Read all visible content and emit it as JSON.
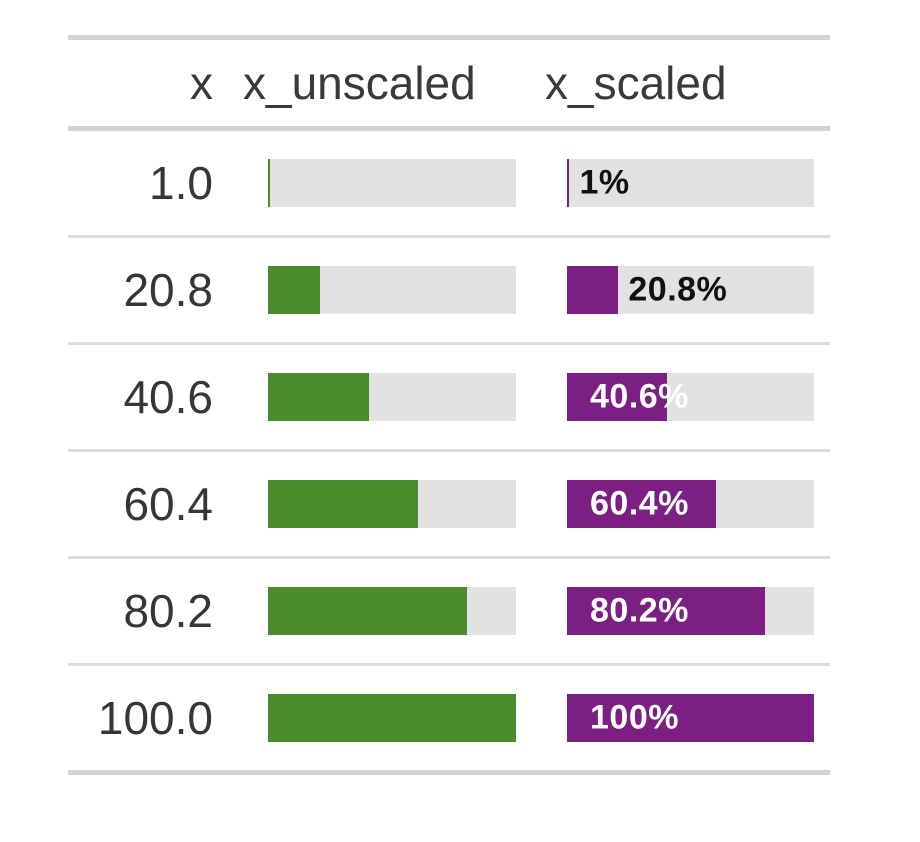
{
  "table": {
    "columns": [
      {
        "id": "x",
        "label": "x"
      },
      {
        "id": "x_unscaled",
        "label": "x_unscaled"
      },
      {
        "id": "x_scaled",
        "label": "x_scaled"
      }
    ],
    "rows": [
      {
        "x": "1.0",
        "pct": 1,
        "bar_label": "1%",
        "label_inside": false
      },
      {
        "x": "20.8",
        "pct": 20.8,
        "bar_label": "20.8%",
        "label_inside": false
      },
      {
        "x": "40.6",
        "pct": 40.6,
        "bar_label": "40.6%",
        "label_inside": true
      },
      {
        "x": "60.4",
        "pct": 60.4,
        "bar_label": "60.4%",
        "label_inside": true
      },
      {
        "x": "80.2",
        "pct": 80.2,
        "bar_label": "80.2%",
        "label_inside": true
      },
      {
        "x": "100.0",
        "pct": 100,
        "bar_label": "100%",
        "label_inside": true
      }
    ]
  },
  "chart_data": {
    "type": "table",
    "columns": [
      "x",
      "x_unscaled",
      "x_scaled"
    ],
    "x": [
      1.0,
      20.8,
      40.6,
      60.4,
      80.2,
      100.0
    ],
    "series": [
      {
        "name": "x_unscaled",
        "type": "bar",
        "values": [
          1,
          20.8,
          40.6,
          60.4,
          80.2,
          100
        ],
        "color": "#4A8B2C",
        "labels": []
      },
      {
        "name": "x_scaled",
        "type": "bar",
        "values": [
          1,
          20.8,
          40.6,
          60.4,
          80.2,
          100
        ],
        "color": "#7B2082",
        "labels": [
          "1%",
          "20.8%",
          "40.6%",
          "60.4%",
          "80.2%",
          "100%"
        ]
      }
    ],
    "xlim": [
      0,
      100
    ],
    "grid": false,
    "legend": false
  },
  "colors": {
    "green_fill": "#4A8B2C",
    "purple_fill": "#7B2082",
    "bar_track": "#E2E2E2",
    "rule_thick": "#D3D3D3",
    "rule_thin": "#DCDCDC",
    "header_text": "#3A3A3A",
    "value_text": "#363636",
    "label_outside_text": "#111111",
    "label_inside_text": "#FFFFFF"
  }
}
